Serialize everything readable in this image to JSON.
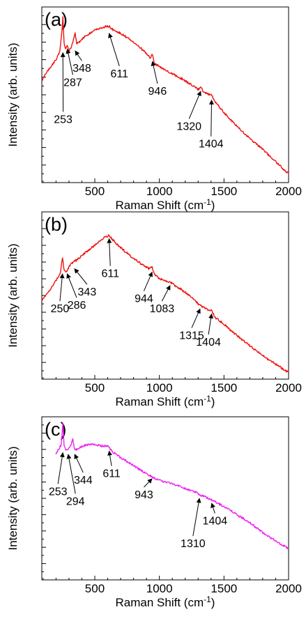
{
  "chart_data": [
    {
      "type": "line",
      "panel_label": "(a)",
      "xlabel": "Raman Shift (cm",
      "xlabel_sup": "-1",
      "xlabel_close": ")",
      "ylabel": "Intensity (arb. units)",
      "xlim": [
        90,
        2000
      ],
      "ylim": [
        0,
        1
      ],
      "x_ticks": [
        500,
        1000,
        1500,
        2000
      ],
      "y_tick_labels_shown": false,
      "color": "#ee1111",
      "grid": false,
      "series": [
        {
          "x": [
            90,
            120,
            160,
            200,
            230,
            245,
            253,
            262,
            272,
            287,
            300,
            320,
            335,
            348,
            360,
            380,
            420,
            480,
            540,
            600,
            611,
            640,
            700,
            760,
            820,
            880,
            930,
            946,
            960,
            1000,
            1100,
            1200,
            1300,
            1320,
            1350,
            1404,
            1430,
            1500,
            1600,
            1700,
            1800,
            1900,
            2000
          ],
          "y": [
            0.58,
            0.62,
            0.66,
            0.7,
            0.75,
            0.86,
            0.94,
            0.8,
            0.76,
            0.78,
            0.75,
            0.77,
            0.82,
            0.85,
            0.79,
            0.8,
            0.83,
            0.86,
            0.88,
            0.89,
            0.89,
            0.87,
            0.85,
            0.82,
            0.79,
            0.75,
            0.71,
            0.73,
            0.68,
            0.66,
            0.62,
            0.58,
            0.53,
            0.54,
            0.51,
            0.5,
            0.46,
            0.4,
            0.32,
            0.25,
            0.19,
            0.12,
            0.05
          ]
        }
      ],
      "annotations": [
        {
          "text": "253",
          "x": 253,
          "y": 0.74,
          "tx": 255,
          "ty": 0.34
        },
        {
          "text": "287",
          "x": 287,
          "y": 0.76,
          "tx": 330,
          "ty": 0.55
        },
        {
          "text": "348",
          "x": 348,
          "y": 0.75,
          "tx": 400,
          "ty": 0.63
        },
        {
          "text": "611",
          "x": 611,
          "y": 0.85,
          "tx": 690,
          "ty": 0.6
        },
        {
          "text": "946",
          "x": 946,
          "y": 0.69,
          "tx": 985,
          "ty": 0.5
        },
        {
          "text": "1320",
          "x": 1320,
          "y": 0.52,
          "tx": 1230,
          "ty": 0.3
        },
        {
          "text": "1404",
          "x": 1404,
          "y": 0.47,
          "tx": 1400,
          "ty": 0.2
        }
      ]
    },
    {
      "type": "line",
      "panel_label": "(b)",
      "xlabel": "Raman Shift (cm",
      "xlabel_sup": "-1",
      "xlabel_close": ")",
      "ylabel": "Intensity (arb. units)",
      "xlim": [
        90,
        2000
      ],
      "ylim": [
        0,
        1
      ],
      "x_ticks": [
        500,
        1000,
        1500,
        2000
      ],
      "y_tick_labels_shown": false,
      "color": "#ee1111",
      "grid": false,
      "series": [
        {
          "x": [
            90,
            120,
            160,
            200,
            235,
            250,
            260,
            275,
            286,
            300,
            320,
            343,
            360,
            400,
            450,
            500,
            560,
            611,
            630,
            680,
            740,
            800,
            860,
            920,
            944,
            960,
            1000,
            1083,
            1120,
            1200,
            1260,
            1315,
            1360,
            1404,
            1430,
            1500,
            1600,
            1700,
            1800,
            1900,
            2000
          ],
          "y": [
            0.47,
            0.5,
            0.54,
            0.59,
            0.64,
            0.73,
            0.66,
            0.64,
            0.65,
            0.67,
            0.69,
            0.71,
            0.71,
            0.74,
            0.77,
            0.8,
            0.84,
            0.86,
            0.84,
            0.8,
            0.76,
            0.72,
            0.69,
            0.66,
            0.67,
            0.63,
            0.6,
            0.58,
            0.56,
            0.52,
            0.48,
            0.44,
            0.42,
            0.41,
            0.37,
            0.33,
            0.26,
            0.2,
            0.14,
            0.09,
            0.04
          ]
        }
      ],
      "annotations": [
        {
          "text": "250",
          "x": 250,
          "y": 0.63,
          "tx": 230,
          "ty": 0.4
        },
        {
          "text": "286",
          "x": 286,
          "y": 0.63,
          "tx": 360,
          "ty": 0.42
        },
        {
          "text": "343",
          "x": 343,
          "y": 0.66,
          "tx": 440,
          "ty": 0.5
        },
        {
          "text": "611",
          "x": 611,
          "y": 0.84,
          "tx": 620,
          "ty": 0.61
        },
        {
          "text": "944",
          "x": 944,
          "y": 0.64,
          "tx": 880,
          "ty": 0.46
        },
        {
          "text": "1083",
          "x": 1083,
          "y": 0.56,
          "tx": 1020,
          "ty": 0.4
        },
        {
          "text": "1315",
          "x": 1315,
          "y": 0.42,
          "tx": 1250,
          "ty": 0.24
        },
        {
          "text": "1404",
          "x": 1404,
          "y": 0.39,
          "tx": 1380,
          "ty": 0.2
        }
      ]
    },
    {
      "type": "line",
      "panel_label": "(c)",
      "xlabel": "Raman Shift (cm",
      "xlabel_sup": "-1",
      "xlabel_close": ")",
      "ylabel": "Intensity (arb. units)",
      "xlim": [
        90,
        2000
      ],
      "ylim": [
        0,
        1
      ],
      "x_ticks": [
        500,
        1000,
        1500,
        2000
      ],
      "y_tick_labels_shown": false,
      "color": "#ee22ee",
      "grid": false,
      "series": [
        {
          "x": [
            195,
            220,
            240,
            253,
            262,
            275,
            294,
            310,
            330,
            344,
            360,
            400,
            450,
            500,
            560,
            600,
            611,
            630,
            700,
            800,
            900,
            943,
            1000,
            1100,
            1200,
            1300,
            1310,
            1350,
            1404,
            1450,
            1500,
            1600,
            1700,
            1800,
            1900,
            2000
          ],
          "y": [
            0.77,
            0.8,
            0.83,
            0.96,
            0.82,
            0.8,
            0.8,
            0.82,
            0.86,
            0.8,
            0.8,
            0.82,
            0.83,
            0.83,
            0.82,
            0.82,
            0.81,
            0.79,
            0.75,
            0.7,
            0.65,
            0.63,
            0.61,
            0.59,
            0.56,
            0.53,
            0.52,
            0.51,
            0.49,
            0.47,
            0.45,
            0.4,
            0.35,
            0.29,
            0.24,
            0.19
          ]
        }
      ],
      "annotations": [
        {
          "text": "253",
          "x": 253,
          "y": 0.78,
          "tx": 215,
          "ty": 0.52
        },
        {
          "text": "294",
          "x": 294,
          "y": 0.77,
          "tx": 350,
          "ty": 0.46
        },
        {
          "text": "344",
          "x": 344,
          "y": 0.77,
          "tx": 410,
          "ty": 0.59
        },
        {
          "text": "611",
          "x": 611,
          "y": 0.79,
          "tx": 630,
          "ty": 0.63
        },
        {
          "text": "943",
          "x": 943,
          "y": 0.62,
          "tx": 880,
          "ty": 0.5
        },
        {
          "text": "1310",
          "x": 1310,
          "y": 0.5,
          "tx": 1260,
          "ty": 0.2
        },
        {
          "text": "1404",
          "x": 1404,
          "y": 0.47,
          "tx": 1430,
          "ty": 0.34
        }
      ]
    }
  ]
}
